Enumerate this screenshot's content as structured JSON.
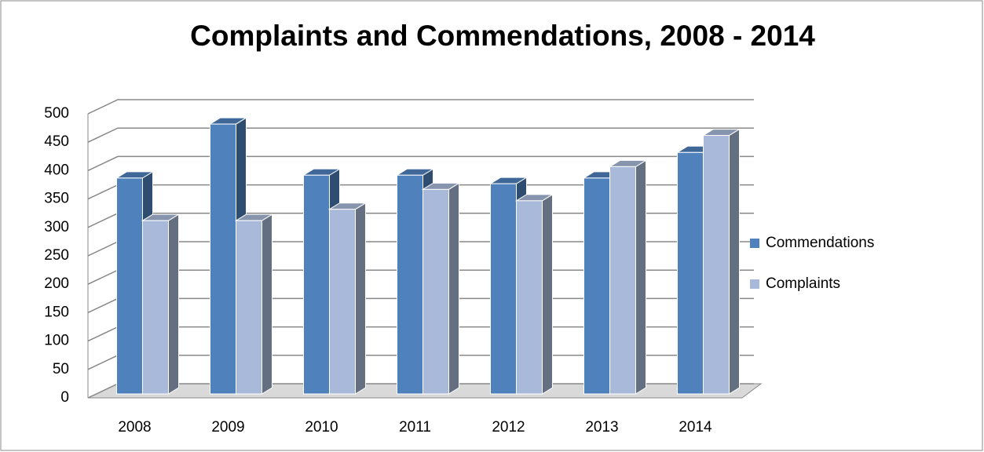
{
  "chart_data": {
    "type": "bar3d",
    "title": "Complaints and Commendations, 2008 - 2014",
    "categories": [
      "2008",
      "2009",
      "2010",
      "2011",
      "2012",
      "2013",
      "2014"
    ],
    "series": [
      {
        "name": "Commendations",
        "color": "#4f81bd",
        "values": [
          380,
          475,
          385,
          385,
          370,
          380,
          425
        ]
      },
      {
        "name": "Complaints",
        "color": "#a9b9d9",
        "values": [
          305,
          305,
          325,
          360,
          340,
          400,
          455
        ]
      }
    ],
    "ylim": [
      0,
      500
    ],
    "yticks": [
      0,
      50,
      100,
      150,
      200,
      250,
      300,
      350,
      400,
      450,
      500
    ],
    "grid": true,
    "legend": "right"
  }
}
